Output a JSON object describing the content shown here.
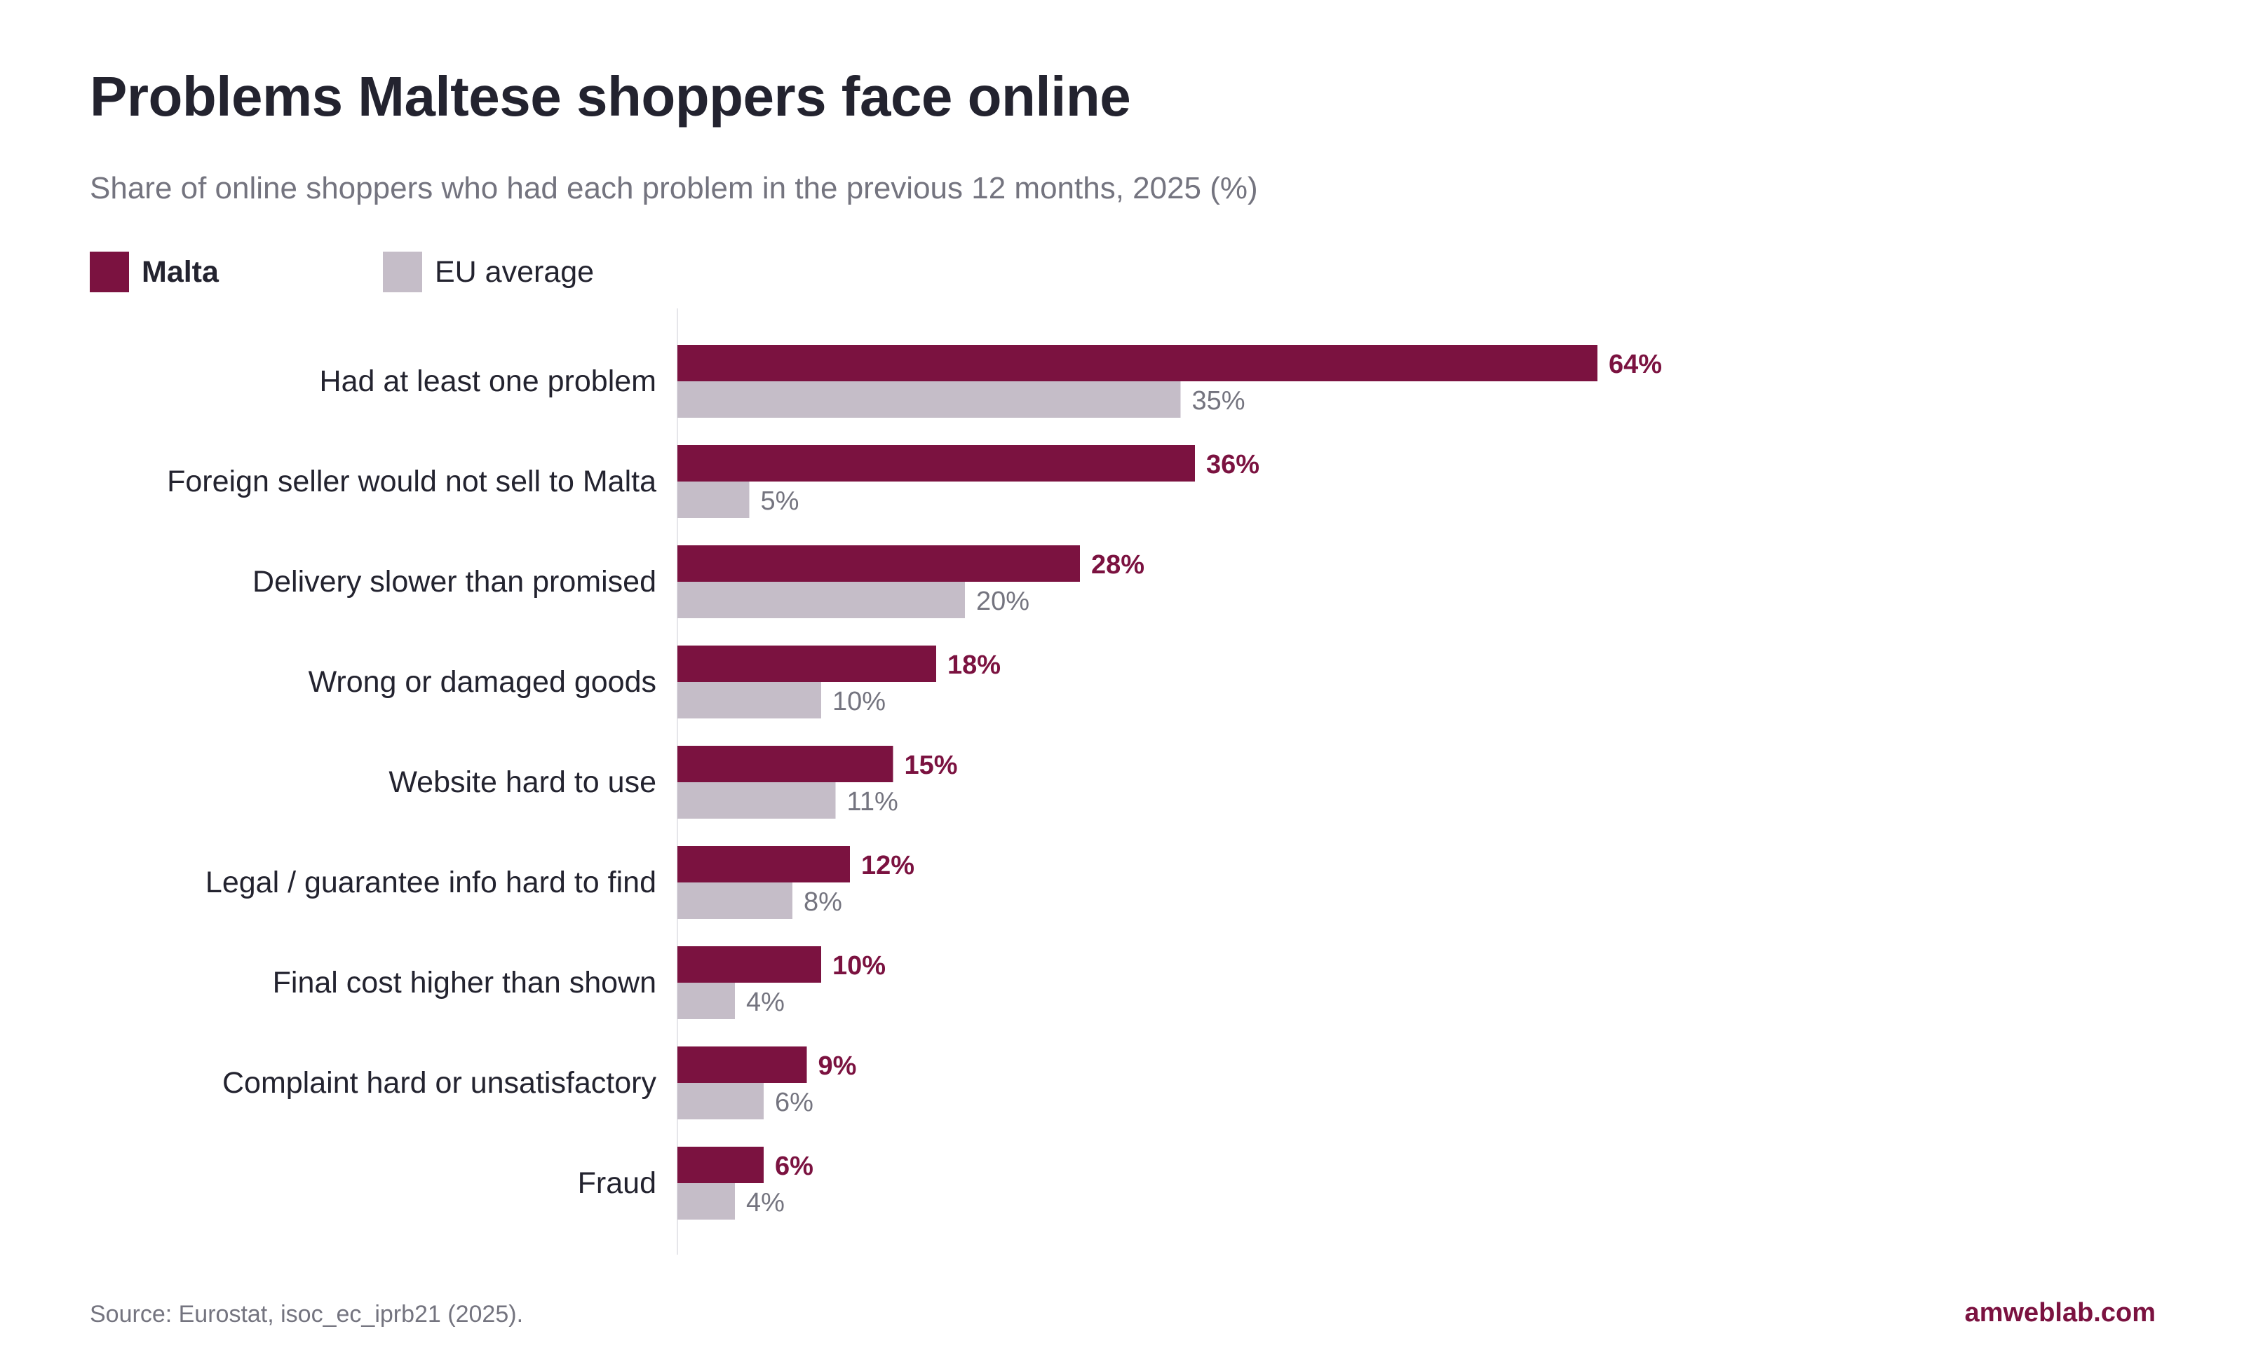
{
  "colors": {
    "malta": "#7b1240",
    "eu": "#c5bdc8",
    "text": "#23232f",
    "muted": "#74747f",
    "axis": "#e6e6ea"
  },
  "chart_data": {
    "type": "bar",
    "orientation": "horizontal",
    "title": "Problems Maltese shoppers face online",
    "subtitle": "Share of online shoppers who had each problem in the previous 12 months, 2025 (%)",
    "legend_position": "top-left",
    "grid": false,
    "xlim": [
      0,
      100
    ],
    "categories": [
      "Had at least one problem",
      "Foreign seller would not sell to Malta",
      "Delivery slower than promised",
      "Wrong or damaged goods",
      "Website hard to use",
      "Legal / guarantee info hard to find",
      "Final cost higher than shown",
      "Complaint hard or unsatisfactory",
      "Fraud"
    ],
    "series": [
      {
        "name": "Malta",
        "values": [
          64,
          36,
          28,
          18,
          15,
          12,
          10,
          9,
          6
        ],
        "labels": [
          "64%",
          "36%",
          "28%",
          "18%",
          "15%",
          "12%",
          "10%",
          "9%",
          "6%"
        ]
      },
      {
        "name": "EU average",
        "values": [
          35,
          5,
          20,
          10,
          11,
          8,
          4,
          6,
          4
        ],
        "labels": [
          "35%",
          "5%",
          "20%",
          "10%",
          "11%",
          "8%",
          "4%",
          "6%",
          "4%"
        ]
      }
    ]
  },
  "footer": {
    "source": "Source: Eurostat, isoc_ec_iprb21 (2025).",
    "brand": "amweblab.com"
  }
}
